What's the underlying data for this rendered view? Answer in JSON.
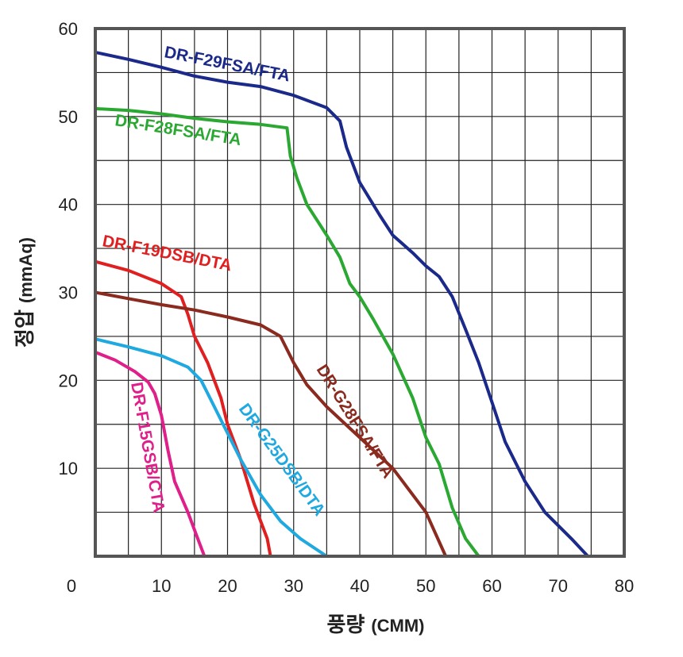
{
  "chart_data": {
    "type": "line",
    "title": "",
    "xlabel": "풍량",
    "xunit": "(CMM)",
    "ylabel": "정압",
    "yunit": "(mmAq)",
    "xlim": [
      0,
      80
    ],
    "ylim": [
      0,
      60
    ],
    "grid": true,
    "x_ticks": [
      0,
      10,
      20,
      30,
      40,
      50,
      60,
      70,
      80
    ],
    "y_ticks": [
      10,
      20,
      30,
      40,
      50,
      60
    ],
    "series": [
      {
        "name": "DR-F29FSA/FTA",
        "color": "#1b2a8a",
        "points": [
          [
            0,
            57.3
          ],
          [
            5,
            56.5
          ],
          [
            10,
            55.6
          ],
          [
            15,
            54.6
          ],
          [
            20,
            53.9
          ],
          [
            25,
            53.4
          ],
          [
            30,
            52.4
          ],
          [
            35,
            51.0
          ],
          [
            37,
            49.5
          ],
          [
            38,
            46.5
          ],
          [
            40,
            42.5
          ],
          [
            43,
            38.8
          ],
          [
            45,
            36.5
          ],
          [
            48,
            34.5
          ],
          [
            50,
            33.0
          ],
          [
            52,
            31.8
          ],
          [
            54,
            29.5
          ],
          [
            56,
            25.8
          ],
          [
            58,
            22.0
          ],
          [
            60,
            17.5
          ],
          [
            62,
            13.0
          ],
          [
            65,
            8.5
          ],
          [
            68,
            5.0
          ],
          [
            72,
            2.0
          ],
          [
            74.5,
            0
          ]
        ]
      },
      {
        "name": "DR-F28FSA/FTA",
        "color": "#2aa832",
        "points": [
          [
            0,
            50.9
          ],
          [
            5,
            50.7
          ],
          [
            10,
            50.3
          ],
          [
            15,
            49.8
          ],
          [
            20,
            49.4
          ],
          [
            25,
            49.1
          ],
          [
            29,
            48.7
          ],
          [
            29.5,
            45.5
          ],
          [
            30.5,
            43.0
          ],
          [
            32,
            40.0
          ],
          [
            35,
            36.5
          ],
          [
            37,
            34.0
          ],
          [
            38.5,
            31.0
          ],
          [
            40,
            29.5
          ],
          [
            42,
            27.0
          ],
          [
            45,
            23.0
          ],
          [
            48,
            18.0
          ],
          [
            50,
            13.5
          ],
          [
            52,
            10.5
          ],
          [
            54,
            5.5
          ],
          [
            56,
            2.0
          ],
          [
            58,
            0
          ]
        ]
      },
      {
        "name": "DR-F19DSB/DTA",
        "color": "#e02020",
        "points": [
          [
            0,
            33.5
          ],
          [
            5,
            32.5
          ],
          [
            10,
            31.0
          ],
          [
            13,
            29.5
          ],
          [
            14,
            27.5
          ],
          [
            15,
            25.0
          ],
          [
            17,
            22.0
          ],
          [
            19,
            18.0
          ],
          [
            20,
            15.0
          ],
          [
            22,
            11.0
          ],
          [
            24,
            6.0
          ],
          [
            26,
            2.0
          ],
          [
            26.5,
            0
          ]
        ]
      },
      {
        "name": "DR-G28FSA/FTA",
        "color": "#8b2a1e",
        "points": [
          [
            0,
            30.0
          ],
          [
            5,
            29.3
          ],
          [
            10,
            28.6
          ],
          [
            15,
            28.0
          ],
          [
            20,
            27.2
          ],
          [
            25,
            26.3
          ],
          [
            28,
            25.0
          ],
          [
            30,
            22.0
          ],
          [
            32,
            19.5
          ],
          [
            35,
            17.0
          ],
          [
            40,
            13.5
          ],
          [
            45,
            10.0
          ],
          [
            50,
            5.0
          ],
          [
            53,
            0
          ]
        ]
      },
      {
        "name": "DR-G25DSB/DTA",
        "color": "#1fa9e0",
        "points": [
          [
            0,
            24.7
          ],
          [
            5,
            23.8
          ],
          [
            10,
            22.8
          ],
          [
            14,
            21.5
          ],
          [
            16,
            20.0
          ],
          [
            18,
            17.0
          ],
          [
            20,
            14.0
          ],
          [
            22,
            11.0
          ],
          [
            25,
            7.0
          ],
          [
            28,
            4.0
          ],
          [
            31,
            2.0
          ],
          [
            35,
            0
          ]
        ]
      },
      {
        "name": "DR-F15GSB/CTA",
        "color": "#e0208a",
        "points": [
          [
            0,
            23.2
          ],
          [
            3,
            22.3
          ],
          [
            6,
            21.0
          ],
          [
            8,
            19.8
          ],
          [
            9,
            18.5
          ],
          [
            10,
            16.0
          ],
          [
            11,
            12.0
          ],
          [
            12,
            8.5
          ],
          [
            14,
            5.0
          ],
          [
            15.5,
            2.0
          ],
          [
            16.5,
            0
          ]
        ]
      }
    ]
  }
}
